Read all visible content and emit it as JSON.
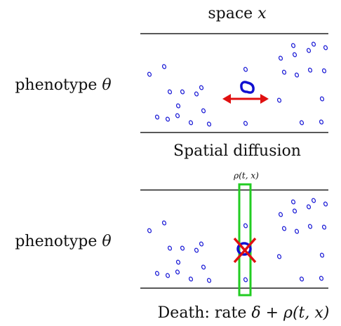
{
  "top_label": {
    "word": "space",
    "var": "x"
  },
  "panels": [
    {
      "label": {
        "word": "phenotype",
        "var": "θ"
      }
    },
    {
      "label": {
        "word": "phenotype",
        "var": "θ"
      }
    }
  ],
  "middle_label": "Spatial diffusion",
  "rho_label": "ρ(t, x)",
  "bottom_label": {
    "word": "Death: rate",
    "expr": "δ + ρ(t, x)"
  }
}
